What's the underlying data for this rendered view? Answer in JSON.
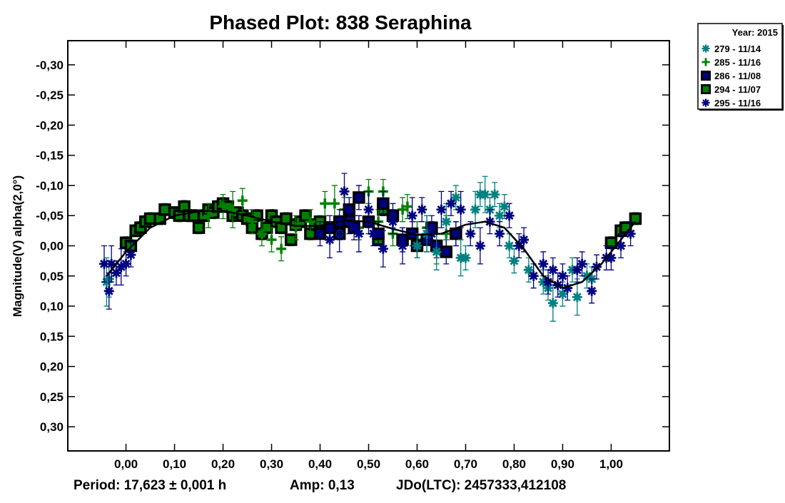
{
  "chart_data": {
    "type": "scatter",
    "title": "Phased Plot: 838 Seraphina",
    "xlabel": "",
    "ylabel": "Magnitude(V) alpha(2,0°)",
    "xlim": [
      -0.12,
      1.12
    ],
    "ylim": [
      0.34,
      -0.34
    ],
    "y_inverted": true,
    "grid": false,
    "x_ticks": [
      "0,00",
      "0,10",
      "0,20",
      "0,30",
      "0,40",
      "0,50",
      "0,60",
      "0,70",
      "0,80",
      "0,90",
      "1,00"
    ],
    "x_tick_values": [
      0,
      0.1,
      0.2,
      0.3,
      0.4,
      0.5,
      0.6,
      0.7,
      0.8,
      0.9,
      1.0
    ],
    "y_ticks": [
      "-0,30",
      "-0,25",
      "-0,20",
      "-0,15",
      "-0,10",
      "-0,05",
      "0,00",
      "0,05",
      "0,10",
      "0,15",
      "0,20",
      "0,25",
      "0,30"
    ],
    "y_tick_values": [
      -0.3,
      -0.25,
      -0.2,
      -0.15,
      -0.1,
      -0.05,
      0,
      0.05,
      0.1,
      0.15,
      0.2,
      0.25,
      0.3
    ],
    "legend": {
      "title": "Year: 2015",
      "placement": "top-right outside"
    },
    "series": [
      {
        "name": "279 - 11/14",
        "marker": "asterisk",
        "color": "#008080",
        "points": [
          [
            -0.04,
            0.06,
            0.04
          ],
          [
            -0.035,
            0.055,
            0.03
          ],
          [
            0.6,
            0.0,
            0.02
          ],
          [
            0.62,
            -0.02,
            0.03
          ],
          [
            0.64,
            0.01,
            0.03
          ],
          [
            0.66,
            -0.04,
            0.03
          ],
          [
            0.68,
            -0.08,
            0.02
          ],
          [
            0.69,
            0.02,
            0.03
          ],
          [
            0.7,
            0.02,
            0.02
          ],
          [
            0.72,
            -0.06,
            0.03
          ],
          [
            0.73,
            -0.085,
            0.02
          ],
          [
            0.74,
            -0.085,
            0.03
          ],
          [
            0.75,
            -0.06,
            0.02
          ],
          [
            0.76,
            -0.085,
            0.02
          ],
          [
            0.77,
            -0.05,
            0.02
          ],
          [
            0.78,
            -0.065,
            0.02
          ],
          [
            0.79,
            0.0,
            0.02
          ],
          [
            0.8,
            0.025,
            0.02
          ],
          [
            0.83,
            0.04,
            0.02
          ],
          [
            0.86,
            0.06,
            0.02
          ],
          [
            0.87,
            0.07,
            0.02
          ],
          [
            0.88,
            0.095,
            0.03
          ],
          [
            0.9,
            0.08,
            0.02
          ],
          [
            0.92,
            0.04,
            0.02
          ],
          [
            0.93,
            0.085,
            0.03
          ],
          [
            0.95,
            0.05,
            0.02
          ],
          [
            0.96,
            0.055,
            0.02
          ]
        ]
      },
      {
        "name": "285 - 11/16",
        "marker": "plus",
        "color": "#008000",
        "points": [
          [
            0.17,
            -0.05,
            0.02
          ],
          [
            0.2,
            -0.065,
            0.02
          ],
          [
            0.22,
            -0.06,
            0.03
          ],
          [
            0.24,
            -0.075,
            0.02
          ],
          [
            0.26,
            -0.04,
            0.02
          ],
          [
            0.28,
            -0.02,
            0.02
          ],
          [
            0.3,
            -0.01,
            0.02
          ],
          [
            0.32,
            0.005,
            0.02
          ],
          [
            0.35,
            -0.03,
            0.02
          ],
          [
            0.38,
            -0.04,
            0.02
          ],
          [
            0.41,
            -0.07,
            0.02
          ],
          [
            0.43,
            -0.07,
            0.03
          ],
          [
            0.45,
            -0.06,
            0.02
          ],
          [
            0.48,
            -0.03,
            0.02
          ],
          [
            0.5,
            -0.09,
            0.02
          ],
          [
            0.52,
            -0.04,
            0.02
          ],
          [
            0.53,
            -0.09,
            0.02
          ],
          [
            0.55,
            -0.02,
            0.02
          ],
          [
            0.57,
            -0.06,
            0.02
          ],
          [
            0.58,
            -0.065,
            0.02
          ],
          [
            0.6,
            -0.01,
            0.03
          ],
          [
            0.62,
            -0.03,
            0.02
          ],
          [
            0.64,
            0.0,
            0.03
          ],
          [
            0.66,
            -0.02,
            0.03
          ],
          [
            0.68,
            -0.02,
            0.02
          ]
        ]
      },
      {
        "name": "286 - 11/08",
        "marker": "square",
        "color": "#000080",
        "points": [
          [
            0.4,
            -0.02,
            0.02
          ],
          [
            0.42,
            -0.03,
            0.02
          ],
          [
            0.44,
            -0.04,
            0.02
          ],
          [
            0.46,
            -0.06,
            0.02
          ],
          [
            0.47,
            -0.03,
            0.02
          ],
          [
            0.48,
            -0.08,
            0.02
          ],
          [
            0.5,
            -0.04,
            0.02
          ],
          [
            0.52,
            -0.02,
            0.02
          ],
          [
            0.53,
            -0.07,
            0.02
          ],
          [
            0.55,
            -0.05,
            0.02
          ],
          [
            0.57,
            -0.01,
            0.02
          ],
          [
            0.59,
            -0.02,
            0.02
          ],
          [
            0.6,
            0.0,
            0.02
          ],
          [
            0.62,
            -0.01,
            0.02
          ],
          [
            0.63,
            -0.03,
            0.02
          ],
          [
            0.64,
            0.0,
            0.02
          ],
          [
            0.66,
            0.01,
            0.02
          ],
          [
            0.68,
            -0.02,
            0.02
          ]
        ]
      },
      {
        "name": "294 - 11/07",
        "marker": "square",
        "color": "#008000",
        "points": [
          [
            0.0,
            -0.005,
            0.01
          ],
          [
            0.01,
            0.0,
            0.01
          ],
          [
            0.02,
            -0.025,
            0.01
          ],
          [
            0.03,
            -0.03,
            0.01
          ],
          [
            0.04,
            -0.04,
            0.01
          ],
          [
            0.05,
            -0.045,
            0.01
          ],
          [
            0.07,
            -0.045,
            0.01
          ],
          [
            0.08,
            -0.06,
            0.01
          ],
          [
            0.1,
            -0.055,
            0.01
          ],
          [
            0.11,
            -0.05,
            0.01
          ],
          [
            0.12,
            -0.065,
            0.01
          ],
          [
            0.13,
            -0.05,
            0.01
          ],
          [
            0.14,
            -0.05,
            0.01
          ],
          [
            0.15,
            -0.03,
            0.01
          ],
          [
            0.16,
            -0.05,
            0.01
          ],
          [
            0.17,
            -0.06,
            0.01
          ],
          [
            0.18,
            -0.055,
            0.01
          ],
          [
            0.19,
            -0.065,
            0.01
          ],
          [
            0.2,
            -0.07,
            0.01
          ],
          [
            0.21,
            -0.065,
            0.01
          ],
          [
            0.22,
            -0.05,
            0.01
          ],
          [
            0.23,
            -0.055,
            0.01
          ],
          [
            0.24,
            -0.05,
            0.01
          ],
          [
            0.25,
            -0.045,
            0.01
          ],
          [
            0.26,
            -0.03,
            0.01
          ],
          [
            0.27,
            -0.05,
            0.01
          ],
          [
            0.28,
            -0.02,
            0.01
          ],
          [
            0.29,
            -0.03,
            0.01
          ],
          [
            0.3,
            -0.05,
            0.01
          ],
          [
            0.31,
            -0.04,
            0.01
          ],
          [
            0.32,
            -0.03,
            0.01
          ],
          [
            0.33,
            -0.045,
            0.01
          ],
          [
            0.34,
            -0.01,
            0.01
          ],
          [
            0.35,
            -0.035,
            0.01
          ],
          [
            0.36,
            -0.04,
            0.01
          ],
          [
            0.37,
            -0.05,
            0.01
          ],
          [
            0.38,
            -0.02,
            0.01
          ],
          [
            0.39,
            -0.035,
            0.01
          ],
          [
            0.4,
            -0.04,
            0.01
          ],
          [
            0.42,
            -0.03,
            0.01
          ],
          [
            0.44,
            -0.02,
            0.01
          ],
          [
            0.46,
            -0.04,
            0.01
          ],
          [
            0.52,
            -0.01,
            0.01
          ],
          [
            0.53,
            -0.06,
            0.01
          ],
          [
            1.0,
            -0.005,
            0.01
          ],
          [
            1.02,
            -0.025,
            0.01
          ],
          [
            1.03,
            -0.03,
            0.01
          ],
          [
            1.05,
            -0.045,
            0.01
          ]
        ]
      },
      {
        "name": "295 - 11/16",
        "marker": "asterisk",
        "color": "#000080",
        "points": [
          [
            -0.045,
            0.03,
            0.03
          ],
          [
            -0.035,
            0.075,
            0.03
          ],
          [
            -0.03,
            0.03,
            0.03
          ],
          [
            -0.02,
            0.045,
            0.02
          ],
          [
            -0.01,
            0.035,
            0.03
          ],
          [
            0.0,
            0.03,
            0.02
          ],
          [
            0.01,
            0.015,
            0.02
          ],
          [
            0.42,
            -0.01,
            0.03
          ],
          [
            0.44,
            -0.02,
            0.03
          ],
          [
            0.45,
            -0.09,
            0.03
          ],
          [
            0.46,
            -0.04,
            0.02
          ],
          [
            0.48,
            -0.02,
            0.03
          ],
          [
            0.5,
            -0.06,
            0.03
          ],
          [
            0.51,
            -0.02,
            0.02
          ],
          [
            0.53,
            0.005,
            0.03
          ],
          [
            0.55,
            -0.04,
            0.02
          ],
          [
            0.57,
            0.0,
            0.03
          ],
          [
            0.59,
            -0.05,
            0.03
          ],
          [
            0.61,
            -0.06,
            0.02
          ],
          [
            0.63,
            -0.02,
            0.02
          ],
          [
            0.65,
            -0.06,
            0.03
          ],
          [
            0.67,
            -0.07,
            0.02
          ],
          [
            0.69,
            -0.06,
            0.03
          ],
          [
            0.71,
            -0.02,
            0.02
          ],
          [
            0.73,
            0.0,
            0.03
          ],
          [
            0.75,
            -0.04,
            0.02
          ],
          [
            0.77,
            -0.02,
            0.02
          ],
          [
            0.79,
            -0.05,
            0.02
          ],
          [
            0.81,
            0.0,
            0.02
          ],
          [
            0.82,
            -0.01,
            0.02
          ],
          [
            0.84,
            0.05,
            0.02
          ],
          [
            0.86,
            0.03,
            0.02
          ],
          [
            0.87,
            0.06,
            0.02
          ],
          [
            0.88,
            0.04,
            0.02
          ],
          [
            0.89,
            0.065,
            0.02
          ],
          [
            0.9,
            0.05,
            0.02
          ],
          [
            0.91,
            0.07,
            0.02
          ],
          [
            0.93,
            0.04,
            0.02
          ],
          [
            0.94,
            0.03,
            0.02
          ],
          [
            0.96,
            0.075,
            0.02
          ],
          [
            0.97,
            0.035,
            0.02
          ],
          [
            0.99,
            0.02,
            0.02
          ],
          [
            1.0,
            0.02,
            0.02
          ],
          [
            1.02,
            0.0,
            0.02
          ],
          [
            1.04,
            -0.02,
            0.02
          ]
        ]
      }
    ],
    "fit_curve": {
      "x": [
        -0.04,
        0.0,
        0.05,
        0.1,
        0.15,
        0.2,
        0.25,
        0.3,
        0.35,
        0.4,
        0.45,
        0.5,
        0.55,
        0.6,
        0.65,
        0.7,
        0.74,
        0.78,
        0.82,
        0.86,
        0.9,
        0.94,
        0.98,
        1.02,
        1.05
      ],
      "y": [
        0.05,
        0.01,
        -0.03,
        -0.05,
        -0.057,
        -0.058,
        -0.05,
        -0.04,
        -0.033,
        -0.033,
        -0.042,
        -0.04,
        -0.028,
        -0.018,
        -0.02,
        -0.035,
        -0.04,
        -0.03,
        0.005,
        0.05,
        0.07,
        0.06,
        0.03,
        -0.01,
        -0.04
      ]
    },
    "footer": {
      "period": "Period: 17,623 ± 0,001 h",
      "amp": "Amp: 0,13",
      "jdo": "JDo(LTC): 2457333,412108"
    }
  }
}
